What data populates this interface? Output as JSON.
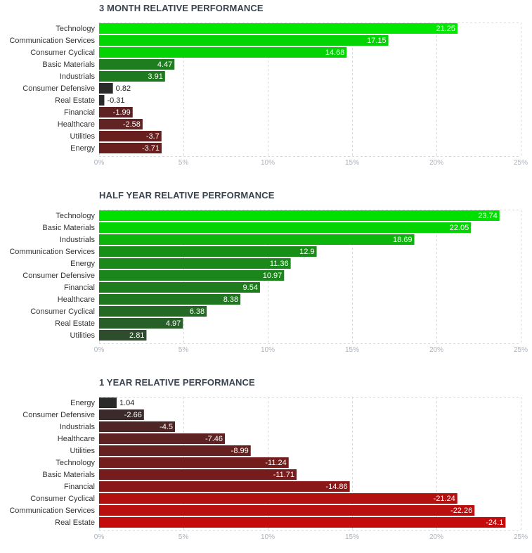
{
  "chart_data": [
    {
      "type": "bar",
      "orientation": "horizontal",
      "title": "3 MONTH RELATIVE PERFORMANCE",
      "categories": [
        "Technology",
        "Communication Services",
        "Consumer Cyclical",
        "Basic Materials",
        "Industrials",
        "Consumer Defensive",
        "Real Estate",
        "Financial",
        "Healthcare",
        "Utilities",
        "Energy"
      ],
      "values": [
        21.25,
        17.15,
        14.68,
        4.47,
        3.91,
        0.82,
        -0.31,
        -1.99,
        -2.58,
        -3.7,
        -3.71
      ],
      "value_labels": [
        "21.25",
        "17.15",
        "14.68",
        "4.47",
        "3.91",
        "0.82",
        "-0.31",
        "-1.99",
        "-2.58",
        "-3.7",
        "-3.71"
      ],
      "colors": [
        "#00e800",
        "#03d403",
        "#03d203",
        "#1e7d1e",
        "#1f7a1f",
        "#2a2a2a",
        "#2a2a2a",
        "#5e2222",
        "#622323",
        "#6a1f1f",
        "#6a1f1f"
      ],
      "xticks": [
        "0%",
        "5%",
        "10%",
        "15%",
        "20%",
        "25%"
      ],
      "xlim": [
        0,
        25
      ],
      "grid": true
    },
    {
      "type": "bar",
      "orientation": "horizontal",
      "title": "HALF YEAR RELATIVE PERFORMANCE",
      "categories": [
        "Technology",
        "Basic Materials",
        "Industrials",
        "Communication Services",
        "Energy",
        "Consumer Defensive",
        "Financial",
        "Healthcare",
        "Consumer Cyclical",
        "Real Estate",
        "Utilities"
      ],
      "values": [
        23.74,
        22.05,
        18.69,
        12.9,
        11.36,
        10.97,
        9.54,
        8.38,
        6.38,
        4.97,
        2.81
      ],
      "value_labels": [
        "23.74",
        "22.05",
        "18.69",
        "12.9",
        "11.36",
        "10.97",
        "9.54",
        "8.38",
        "6.38",
        "4.97",
        "2.81"
      ],
      "colors": [
        "#00e000",
        "#04d404",
        "#0cb40c",
        "#178f17",
        "#1a891a",
        "#1b861b",
        "#1d7d1d",
        "#1f771f",
        "#246a24",
        "#285f28",
        "#2d4d2d"
      ],
      "xticks": [
        "0%",
        "5%",
        "10%",
        "15%",
        "20%",
        "25%"
      ],
      "xlim": [
        0,
        25
      ],
      "grid": true
    },
    {
      "type": "bar",
      "orientation": "horizontal",
      "title": "1 YEAR RELATIVE PERFORMANCE",
      "categories": [
        "Energy",
        "Consumer Defensive",
        "Industrials",
        "Healthcare",
        "Utilities",
        "Technology",
        "Basic Materials",
        "Financial",
        "Consumer Cyclical",
        "Communication Services",
        "Real Estate"
      ],
      "values": [
        1.04,
        -2.66,
        -4.5,
        -7.46,
        -8.99,
        -11.24,
        -11.71,
        -14.86,
        -21.24,
        -22.26,
        -24.1
      ],
      "value_labels": [
        "1.04",
        "-2.66",
        "-4.5",
        "-7.46",
        "-8.99",
        "-11.24",
        "-11.71",
        "-14.86",
        "-21.24",
        "-22.26",
        "-24.1"
      ],
      "colors": [
        "#2a2a2a",
        "#3a2a2a",
        "#4e2626",
        "#5e2222",
        "#662020",
        "#731d1d",
        "#761c1c",
        "#8a1818",
        "#b31010",
        "#b90f0f",
        "#c50c0c"
      ],
      "xticks": [
        "0%",
        "5%",
        "10%",
        "15%",
        "20%",
        "25%"
      ],
      "xlim": [
        0,
        25
      ],
      "grid": true
    }
  ]
}
